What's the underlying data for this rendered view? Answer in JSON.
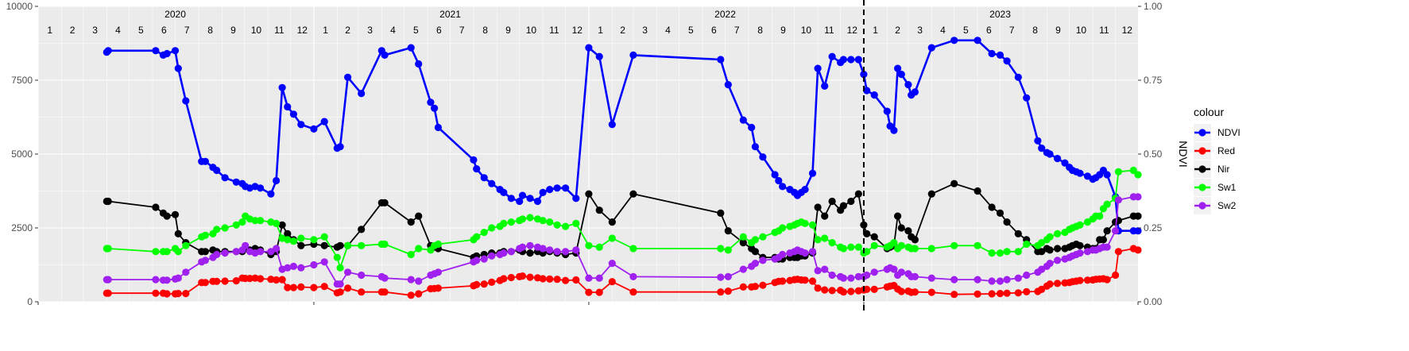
{
  "chart_data": {
    "type": "line",
    "xlabel": "",
    "ylabel": "",
    "y2label": "NDVI",
    "ylim": [
      0,
      10000
    ],
    "y2lim": [
      0,
      1
    ],
    "yticks": [
      0,
      2500,
      5000,
      7500,
      10000
    ],
    "yticklabels": [
      "0",
      "2500",
      "5000",
      "7500",
      "10000"
    ],
    "y2ticks": [
      0,
      0.25,
      0.5,
      0.75,
      1.0
    ],
    "y2ticklabels": [
      "0.00",
      "0.25",
      "0.50",
      "0.75",
      "1.00"
    ],
    "xlim": [
      "2020-01-01",
      "2023-12-31"
    ],
    "grid": true,
    "vline": {
      "date": "2023-01-01",
      "style": "dashed"
    },
    "years": [
      {
        "label": "2020",
        "mid": "2020-07-01"
      },
      {
        "label": "2021",
        "mid": "2021-07-01"
      },
      {
        "label": "2022",
        "mid": "2022-07-01"
      },
      {
        "label": "2023",
        "mid": "2023-07-01"
      }
    ],
    "months": [
      "1",
      "2",
      "3",
      "4",
      "5",
      "6",
      "7",
      "8",
      "9",
      "10",
      "11",
      "12"
    ],
    "dates": [
      "2020-04-01",
      "2020-04-03",
      "2020-06-05",
      "2020-06-15",
      "2020-06-20",
      "2020-07-01",
      "2020-07-05",
      "2020-07-15",
      "2020-08-05",
      "2020-08-10",
      "2020-08-20",
      "2020-08-25",
      "2020-09-05",
      "2020-09-20",
      "2020-09-28",
      "2020-10-02",
      "2020-10-08",
      "2020-10-15",
      "2020-10-22",
      "2020-11-05",
      "2020-11-12",
      "2020-11-20",
      "2020-11-27",
      "2020-12-05",
      "2020-12-15",
      "2021-01-01",
      "2021-01-15",
      "2021-02-01",
      "2021-02-05",
      "2021-02-15",
      "2021-03-05",
      "2021-04-01",
      "2021-04-05",
      "2021-05-10",
      "2021-05-20",
      "2021-06-05",
      "2021-06-10",
      "2021-06-15",
      "2021-08-01",
      "2021-08-05",
      "2021-08-15",
      "2021-08-25",
      "2021-09-05",
      "2021-09-10",
      "2021-09-20",
      "2021-10-01",
      "2021-10-05",
      "2021-10-15",
      "2021-10-25",
      "2021-11-01",
      "2021-11-10",
      "2021-11-20",
      "2021-12-01",
      "2021-12-15",
      "2022-01-01",
      "2022-01-15",
      "2022-02-01",
      "2022-03-01",
      "2022-06-25",
      "2022-07-05",
      "2022-07-25",
      "2022-08-05",
      "2022-08-10",
      "2022-08-20",
      "2022-09-05",
      "2022-09-10",
      "2022-09-15",
      "2022-09-25",
      "2022-10-01",
      "2022-10-05",
      "2022-10-10",
      "2022-10-15",
      "2022-10-25",
      "2022-11-01",
      "2022-11-10",
      "2022-11-20",
      "2022-12-01",
      "2022-12-05",
      "2022-12-15",
      "2022-12-25",
      "2023-01-01",
      "2023-01-05",
      "2023-01-15",
      "2023-02-01",
      "2023-02-05",
      "2023-02-10",
      "2023-02-15",
      "2023-02-20",
      "2023-03-01",
      "2023-03-05",
      "2023-03-10",
      "2023-04-01",
      "2023-05-01",
      "2023-06-01",
      "2023-06-20",
      "2023-07-01",
      "2023-07-10",
      "2023-07-25",
      "2023-08-05",
      "2023-08-20",
      "2023-08-25",
      "2023-09-01",
      "2023-09-05",
      "2023-09-15",
      "2023-09-25",
      "2023-10-01",
      "2023-10-05",
      "2023-10-10",
      "2023-10-15",
      "2023-10-25",
      "2023-11-01",
      "2023-11-05",
      "2023-11-10",
      "2023-11-15",
      "2023-11-20",
      "2023-12-01",
      "2023-12-05",
      "2023-12-25",
      "2023-12-31"
    ],
    "series": [
      {
        "name": "NDVI",
        "axis": "right",
        "color": "#0000ff",
        "values": [
          0.845,
          0.85,
          0.85,
          0.835,
          0.84,
          0.85,
          0.79,
          0.68,
          0.475,
          0.475,
          0.455,
          0.445,
          0.42,
          0.405,
          0.4,
          0.39,
          0.385,
          0.39,
          0.385,
          0.365,
          0.41,
          0.725,
          0.66,
          0.635,
          0.6,
          0.585,
          0.61,
          0.52,
          0.525,
          0.76,
          0.705,
          0.85,
          0.835,
          0.86,
          0.805,
          0.675,
          0.655,
          0.59,
          0.48,
          0.45,
          0.42,
          0.4,
          0.38,
          0.37,
          0.35,
          0.34,
          0.36,
          0.35,
          0.34,
          0.37,
          0.38,
          0.385,
          0.385,
          0.35,
          0.86,
          0.83,
          0.6,
          0.835,
          0.82,
          0.735,
          0.615,
          0.59,
          0.525,
          0.49,
          0.43,
          0.41,
          0.39,
          0.38,
          0.37,
          0.36,
          0.37,
          0.38,
          0.435,
          0.79,
          0.73,
          0.83,
          0.81,
          0.82,
          0.82,
          0.82,
          0.77,
          0.715,
          0.7,
          0.645,
          0.595,
          0.58,
          0.79,
          0.77,
          0.735,
          0.7,
          0.71,
          0.86,
          0.885,
          0.885,
          0.84,
          0.835,
          0.815,
          0.76,
          0.69,
          0.545,
          0.52,
          0.505,
          0.5,
          0.485,
          0.47,
          0.455,
          0.445,
          0.44,
          0.435,
          0.425,
          0.415,
          0.42,
          0.43,
          0.445,
          0.43,
          0.355,
          0.24,
          0.24,
          0.24
        ]
      },
      {
        "name": "Red",
        "axis": "left",
        "color": "#ff0000",
        "values": [
          290,
          290,
          290,
          290,
          270,
          270,
          280,
          280,
          650,
          650,
          690,
          690,
          700,
          710,
          800,
          790,
          790,
          800,
          780,
          760,
          740,
          750,
          480,
          480,
          500,
          480,
          520,
          300,
          330,
          460,
          330,
          330,
          330,
          220,
          270,
          440,
          450,
          460,
          540,
          580,
          600,
          660,
          720,
          780,
          820,
          850,
          870,
          830,
          810,
          780,
          770,
          760,
          720,
          740,
          320,
          320,
          680,
          330,
          330,
          360,
          500,
          500,
          520,
          560,
          650,
          690,
          700,
          720,
          750,
          760,
          740,
          730,
          700,
          460,
          400,
          380,
          390,
          330,
          350,
          370,
          400,
          420,
          420,
          500,
          530,
          550,
          430,
          350,
          360,
          320,
          330,
          320,
          250,
          260,
          270,
          280,
          290,
          300,
          340,
          350,
          420,
          530,
          600,
          620,
          640,
          650,
          680,
          700,
          720,
          730,
          740,
          760,
          770,
          780,
          750,
          900,
          1700,
          1800,
          1750
        ]
      },
      {
        "name": "Nir",
        "axis": "left",
        "color": "#000000",
        "values": [
          3400,
          3400,
          3200,
          3000,
          2900,
          2950,
          2300,
          2000,
          1700,
          1700,
          1750,
          1700,
          1700,
          1700,
          1700,
          1800,
          1750,
          1800,
          1750,
          1600,
          1700,
          2600,
          2300,
          2100,
          1900,
          1950,
          1900,
          1850,
          1900,
          1900,
          2450,
          3350,
          3350,
          2700,
          2900,
          1900,
          1850,
          1800,
          1500,
          1550,
          1600,
          1650,
          1650,
          1700,
          1700,
          1750,
          1700,
          1650,
          1700,
          1650,
          1700,
          1650,
          1600,
          1650,
          3650,
          3100,
          2700,
          3650,
          3000,
          2400,
          2000,
          1800,
          1700,
          1500,
          1500,
          1450,
          1450,
          1500,
          1500,
          1500,
          1550,
          1550,
          1650,
          3200,
          2900,
          3400,
          3100,
          3250,
          3400,
          3650,
          2600,
          2300,
          2200,
          1800,
          1850,
          1900,
          2900,
          2500,
          2400,
          2200,
          2100,
          3650,
          4000,
          3750,
          3200,
          3000,
          2700,
          2300,
          2100,
          1700,
          1700,
          1800,
          1750,
          1800,
          1800,
          1850,
          1900,
          1950,
          1900,
          1850,
          1800,
          1800,
          2100,
          2100,
          2400,
          2700,
          2750,
          2900,
          2900
        ]
      },
      {
        "name": "Sw1",
        "axis": "left",
        "color": "#00ff00",
        "values": [
          1800,
          1800,
          1700,
          1700,
          1700,
          1800,
          1700,
          1900,
          2200,
          2250,
          2300,
          2450,
          2500,
          2600,
          2700,
          2900,
          2800,
          2750,
          2750,
          2700,
          2650,
          2150,
          2100,
          2050,
          2150,
          2100,
          2200,
          1500,
          1150,
          1900,
          1900,
          1950,
          1950,
          1600,
          1800,
          1750,
          1900,
          1950,
          2100,
          2200,
          2350,
          2500,
          2550,
          2650,
          2700,
          2750,
          2800,
          2850,
          2800,
          2750,
          2700,
          2600,
          2550,
          2650,
          1900,
          1850,
          2150,
          1800,
          1800,
          1750,
          2200,
          2000,
          2100,
          2200,
          2350,
          2400,
          2500,
          2550,
          2600,
          2650,
          2700,
          2650,
          2600,
          2100,
          2150,
          2000,
          1850,
          1800,
          1850,
          1850,
          1650,
          1700,
          1900,
          1850,
          1900,
          2000,
          1800,
          1900,
          1850,
          1800,
          1800,
          1800,
          1900,
          1900,
          1650,
          1650,
          1700,
          1700,
          1950,
          1900,
          2000,
          2100,
          2200,
          2300,
          2350,
          2450,
          2500,
          2550,
          2600,
          2700,
          2800,
          2900,
          2900,
          3150,
          3300,
          3500,
          4400,
          4450,
          4300
        ]
      },
      {
        "name": "Sw2",
        "axis": "left",
        "color": "#a020f0",
        "values": [
          750,
          750,
          750,
          730,
          730,
          770,
          800,
          1000,
          1350,
          1400,
          1500,
          1600,
          1650,
          1700,
          1750,
          1900,
          1700,
          1650,
          1700,
          1700,
          1800,
          1100,
          1150,
          1200,
          1150,
          1250,
          1350,
          600,
          600,
          1000,
          900,
          850,
          800,
          750,
          700,
          900,
          950,
          1000,
          1350,
          1400,
          1450,
          1550,
          1600,
          1650,
          1700,
          1800,
          1850,
          1900,
          1850,
          1800,
          1750,
          1700,
          1700,
          1750,
          800,
          800,
          1300,
          850,
          830,
          850,
          1100,
          1200,
          1300,
          1400,
          1450,
          1500,
          1600,
          1650,
          1700,
          1750,
          1700,
          1650,
          1700,
          1050,
          1100,
          900,
          850,
          800,
          800,
          850,
          850,
          900,
          1000,
          1100,
          1150,
          1100,
          900,
          1000,
          950,
          850,
          850,
          800,
          750,
          750,
          700,
          700,
          750,
          800,
          900,
          1000,
          1100,
          1200,
          1300,
          1400,
          1450,
          1500,
          1550,
          1600,
          1650,
          1700,
          1750,
          1750,
          1800,
          1850,
          1850,
          2400,
          3450,
          3550,
          3550
        ]
      }
    ],
    "legend": {
      "title": "colour",
      "position": "right",
      "entries": [
        "NDVI",
        "Red",
        "Nir",
        "Sw1",
        "Sw2"
      ]
    }
  }
}
